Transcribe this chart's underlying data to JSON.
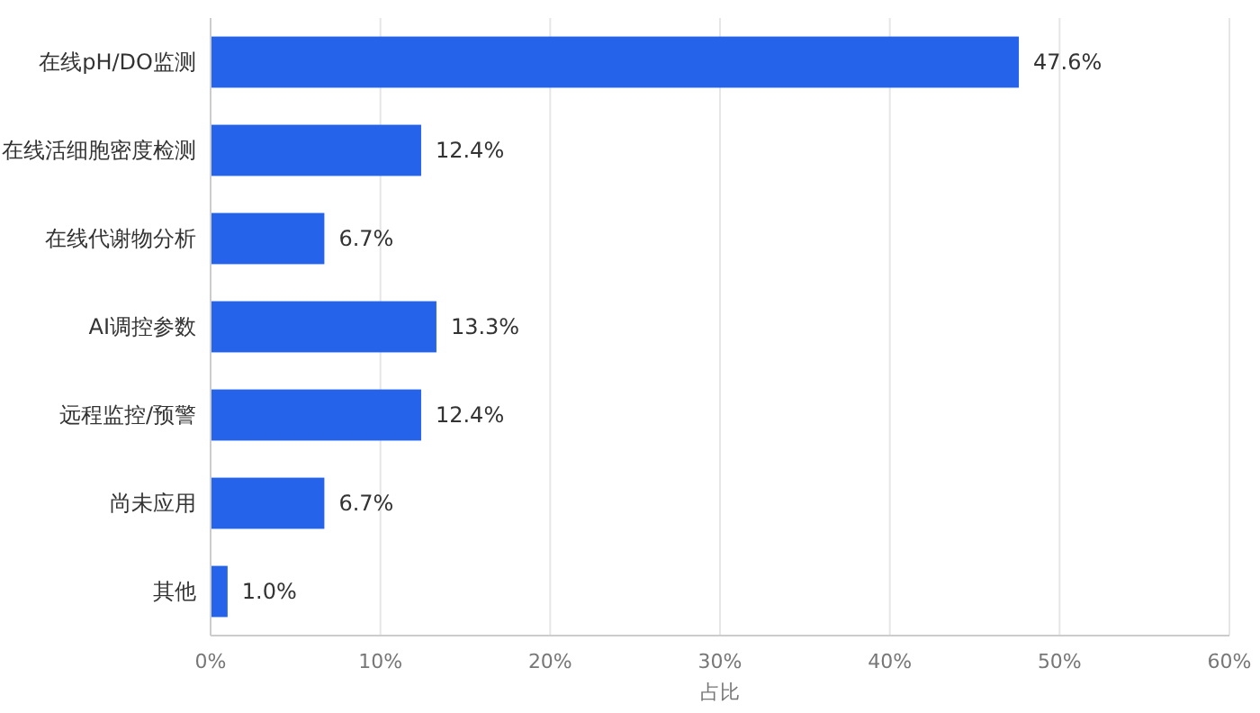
{
  "chart_data": {
    "type": "bar",
    "orientation": "horizontal",
    "xlabel": "占比",
    "categories": [
      "在线pH/DO监测",
      "在线活细胞密度检测",
      "在线代谢物分析",
      "AI调控参数",
      "远程监控/预警",
      "尚未应用",
      "其他"
    ],
    "values": [
      47.6,
      12.4,
      6.7,
      13.3,
      12.4,
      6.7,
      1.0
    ],
    "value_labels": [
      "47.6%",
      "12.4%",
      "6.7%",
      "13.3%",
      "12.4%",
      "6.7%",
      "1.0%"
    ],
    "color": "#2563eb",
    "xlim": [
      0,
      60
    ],
    "xticks": [
      {
        "value": 0,
        "label": "0%"
      },
      {
        "value": 10,
        "label": "10%"
      },
      {
        "value": 20,
        "label": "20%"
      },
      {
        "value": 30,
        "label": "30%"
      },
      {
        "value": 40,
        "label": "40%"
      },
      {
        "value": 50,
        "label": "50%"
      },
      {
        "value": 60,
        "label": "60%"
      }
    ],
    "grid": "x"
  }
}
